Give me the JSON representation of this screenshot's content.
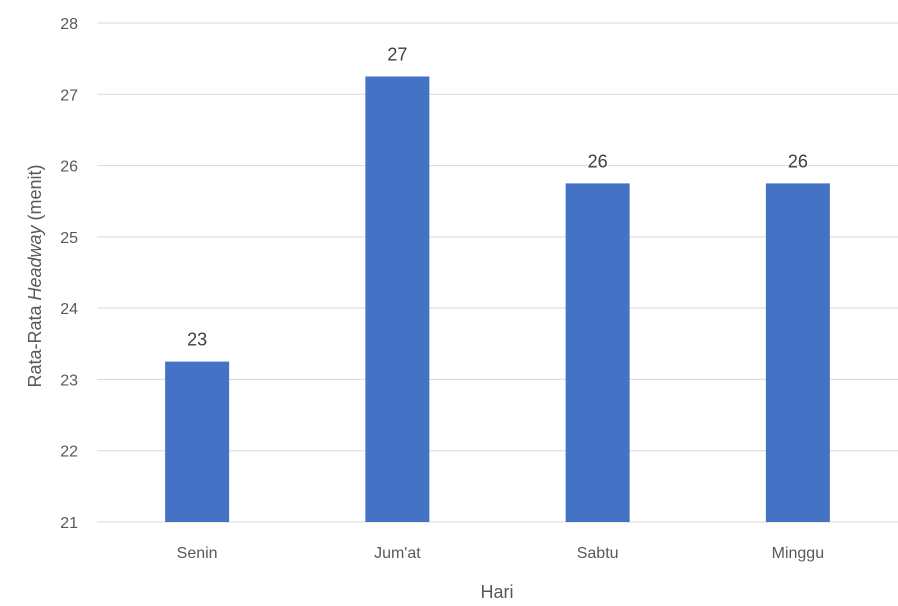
{
  "chart_data": {
    "type": "bar",
    "categories": [
      "Senin",
      "Jum'at",
      "Sabtu",
      "Minggu"
    ],
    "values": [
      23.25,
      27.25,
      25.75,
      25.75
    ],
    "data_labels": [
      "23",
      "27",
      "26",
      "26"
    ],
    "xlabel": "Hari",
    "ylabel_prefix": "Rata-Rata ",
    "ylabel_italic": "Headway",
    "ylabel_suffix": " (menit)",
    "ylim": [
      21,
      28
    ],
    "yticks": [
      21,
      22,
      23,
      24,
      25,
      26,
      27,
      28
    ],
    "grid": true,
    "bar_color": "#4472C4",
    "legend": "none"
  }
}
